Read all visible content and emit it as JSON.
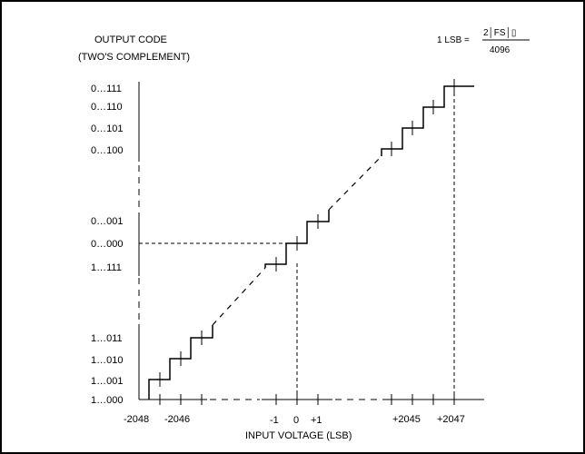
{
  "y_axis": {
    "title_line1": "OUTPUT CODE",
    "title_line2": "(TWO'S COMPLEMENT)",
    "codes": {
      "c111": "0…111",
      "c110": "0…110",
      "c101": "0…101",
      "c100": "0…100",
      "c001": "0…001",
      "c000": "0…000",
      "neg1": "1…111",
      "n011": "1…011",
      "n010": "1…010",
      "n001": "1…001",
      "n000": "1…000"
    }
  },
  "x_axis": {
    "title": "INPUT VOLTAGE (LSB)",
    "ticks": {
      "m2048": "-2048",
      "m2046": "-2046",
      "m1": "-1",
      "zero": "0",
      "p1": "+1",
      "p2045": "+2045",
      "p2047": "+2047"
    }
  },
  "formula": {
    "lhs": "1 LSB =",
    "numerator": "2│FS│▯",
    "denominator": "4096"
  },
  "colors": {
    "line": "#000000",
    "frame": "#000000",
    "background": "#ffffff"
  }
}
